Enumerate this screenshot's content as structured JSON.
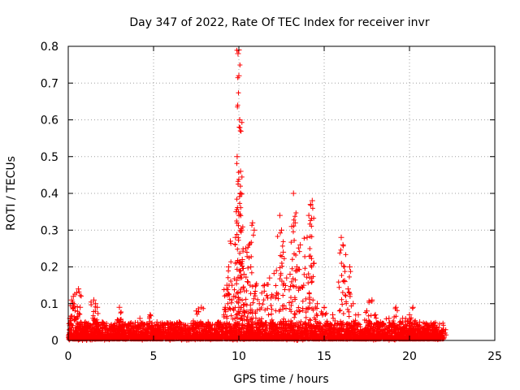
{
  "chart_data": {
    "type": "scatter",
    "title": "Day 347 of 2022, Rate Of TEC Index for receiver invr",
    "xlabel": "GPS time / hours",
    "ylabel": "ROTI / TECUs",
    "xlim": [
      0,
      25
    ],
    "ylim": [
      0,
      0.8
    ],
    "xticks": [
      0,
      5,
      10,
      15,
      20,
      25
    ],
    "yticks": [
      0,
      0.1,
      0.2,
      0.3,
      0.4,
      0.5,
      0.6,
      0.7,
      0.8
    ],
    "grid": true,
    "marker": "plus",
    "color": "#ff0000",
    "series": [
      {
        "values": [
          [
            0.1,
            0.06
          ],
          [
            0.2,
            0.11
          ],
          [
            0.3,
            0.12
          ],
          [
            0.5,
            0.13
          ],
          [
            0.6,
            0.14
          ],
          [
            0.7,
            0.09
          ],
          [
            1.0,
            0.05
          ],
          [
            1.2,
            0.04
          ],
          [
            1.5,
            0.11
          ],
          [
            1.6,
            0.1
          ],
          [
            1.7,
            0.09
          ],
          [
            2.0,
            0.05
          ],
          [
            2.5,
            0.04
          ],
          [
            3.0,
            0.09
          ],
          [
            3.2,
            0.05
          ],
          [
            3.8,
            0.04
          ],
          [
            4.2,
            0.06
          ],
          [
            4.8,
            0.07
          ],
          [
            5.2,
            0.05
          ],
          [
            6.0,
            0.04
          ],
          [
            6.5,
            0.05
          ],
          [
            7.0,
            0.04
          ],
          [
            7.5,
            0.08
          ],
          [
            7.8,
            0.09
          ],
          [
            8.2,
            0.05
          ],
          [
            8.8,
            0.05
          ],
          [
            9.2,
            0.09
          ],
          [
            9.3,
            0.15
          ],
          [
            9.4,
            0.2
          ],
          [
            9.5,
            0.27
          ],
          [
            9.6,
            0.15
          ],
          [
            9.7,
            0.12
          ],
          [
            9.8,
            0.28
          ],
          [
            9.85,
            0.35
          ],
          [
            9.9,
            0.5
          ],
          [
            9.95,
            0.78
          ],
          [
            10.0,
            0.79
          ],
          [
            10.0,
            0.72
          ],
          [
            10.05,
            0.6
          ],
          [
            10.1,
            0.46
          ],
          [
            10.1,
            0.4
          ],
          [
            10.15,
            0.3
          ],
          [
            10.2,
            0.22
          ],
          [
            10.3,
            0.18
          ],
          [
            10.4,
            0.25
          ],
          [
            10.5,
            0.16
          ],
          [
            10.6,
            0.26
          ],
          [
            10.7,
            0.2
          ],
          [
            10.8,
            0.32
          ],
          [
            10.9,
            0.3
          ],
          [
            11.0,
            0.15
          ],
          [
            11.2,
            0.1
          ],
          [
            11.5,
            0.15
          ],
          [
            11.8,
            0.17
          ],
          [
            12.0,
            0.12
          ],
          [
            12.2,
            0.19
          ],
          [
            12.4,
            0.34
          ],
          [
            12.5,
            0.3
          ],
          [
            12.6,
            0.24
          ],
          [
            12.8,
            0.17
          ],
          [
            13.0,
            0.18
          ],
          [
            13.1,
            0.31
          ],
          [
            13.2,
            0.4
          ],
          [
            13.3,
            0.32
          ],
          [
            13.4,
            0.2
          ],
          [
            13.6,
            0.26
          ],
          [
            13.8,
            0.15
          ],
          [
            14.0,
            0.28
          ],
          [
            14.1,
            0.34
          ],
          [
            14.2,
            0.37
          ],
          [
            14.3,
            0.38
          ],
          [
            14.4,
            0.21
          ],
          [
            14.6,
            0.1
          ],
          [
            15.0,
            0.09
          ],
          [
            15.5,
            0.07
          ],
          [
            16.0,
            0.28
          ],
          [
            16.1,
            0.26
          ],
          [
            16.2,
            0.16
          ],
          [
            16.4,
            0.14
          ],
          [
            16.5,
            0.2
          ],
          [
            16.7,
            0.1
          ],
          [
            17.0,
            0.07
          ],
          [
            17.5,
            0.08
          ],
          [
            17.8,
            0.11
          ],
          [
            18.0,
            0.07
          ],
          [
            18.3,
            0.05
          ],
          [
            18.8,
            0.06
          ],
          [
            19.2,
            0.09
          ],
          [
            19.6,
            0.06
          ],
          [
            20.0,
            0.07
          ],
          [
            20.2,
            0.09
          ],
          [
            20.6,
            0.05
          ],
          [
            21.0,
            0.04
          ],
          [
            21.5,
            0.04
          ],
          [
            22.0,
            0.03
          ]
        ]
      }
    ]
  }
}
